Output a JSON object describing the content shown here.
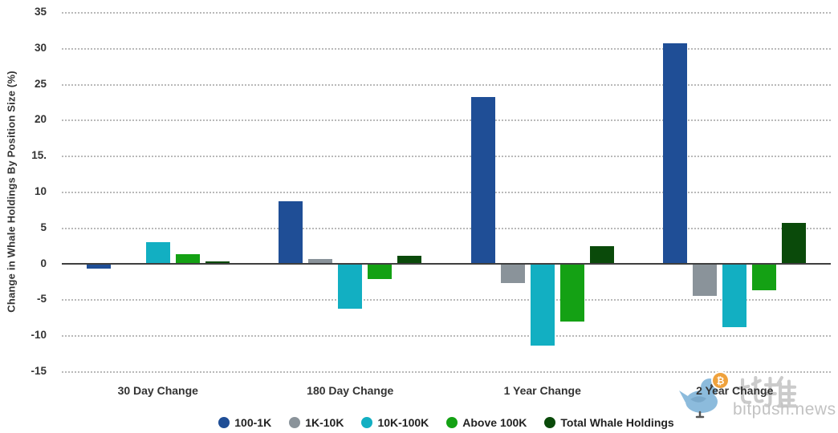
{
  "page": {
    "background": "#ffffff"
  },
  "chart_data": {
    "type": "bar",
    "title": "",
    "xlabel": "",
    "ylabel": "Change in Whale Holdings By Position Size (%)",
    "categories": [
      "30 Day Change",
      "180 Day Change",
      "1 Year Change",
      "2 Year Change"
    ],
    "series": [
      {
        "name": "100-1K",
        "color": "#1F4E96",
        "values": [
          -0.7,
          8.7,
          23.2,
          30.7
        ]
      },
      {
        "name": "1K-10K",
        "color": "#8A939A",
        "values": [
          -0.2,
          0.6,
          -2.7,
          -4.5
        ]
      },
      {
        "name": "10K-100K",
        "color": "#12AFC2",
        "values": [
          3.0,
          -6.3,
          -11.4,
          -8.9
        ]
      },
      {
        "name": "Above 100K",
        "color": "#14A114",
        "values": [
          1.3,
          -2.2,
          -8.1,
          -3.7
        ]
      },
      {
        "name": "Total Whale Holdings",
        "color": "#0A4A0A",
        "values": [
          0.3,
          1.1,
          2.4,
          5.6
        ]
      }
    ],
    "ylim": [
      -15,
      35
    ],
    "ytick_step": 5,
    "ytick_labels": [
      "35",
      "30",
      "25",
      "20",
      "15.",
      "10",
      "5",
      "0",
      "-5",
      "-10",
      "-15"
    ],
    "grid": "horizontal-dotted",
    "zero_line_color": "#3f3f3f",
    "legend_position": "bottom-center"
  },
  "watermark": {
    "cn_text": "比推",
    "site": "bitpush.news",
    "badge_symbol": "₿",
    "bird_color": "#8CBBDC",
    "badge_color": "#EFA23D"
  }
}
